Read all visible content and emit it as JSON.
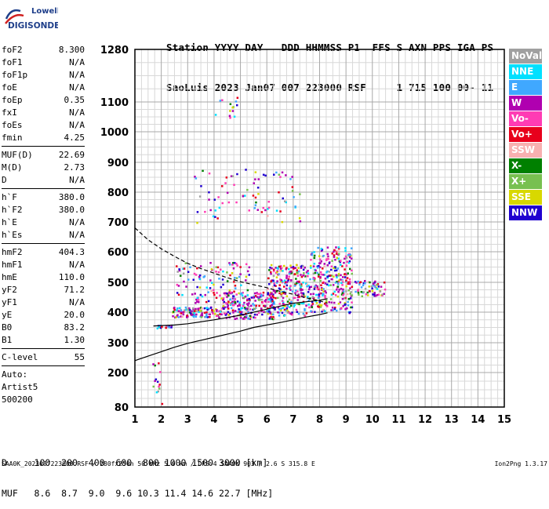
{
  "logo": {
    "line1": "Lowell",
    "line2": "DIGISONDE"
  },
  "header": {
    "line1": "Station YYYY DAY   DDD HHMMSS P1  FFS S AXN PPS IGA PS",
    "line2": "SaoLuis 2023 Jan07 007 223000 RSF     1 715 100 00- 11"
  },
  "params_group1": [
    {
      "name": "foF2",
      "value": "8.300"
    },
    {
      "name": "foF1",
      "value": "N/A"
    },
    {
      "name": "foF1p",
      "value": "N/A"
    },
    {
      "name": "foE",
      "value": "N/A"
    },
    {
      "name": "foEp",
      "value": "0.35"
    },
    {
      "name": "fxI",
      "value": "N/A"
    },
    {
      "name": "foEs",
      "value": "N/A"
    },
    {
      "name": "fmin",
      "value": "4.25"
    }
  ],
  "params_group2": [
    {
      "name": "MUF(D)",
      "value": "22.69"
    },
    {
      "name": "M(D)",
      "value": "2.73"
    },
    {
      "name": "D",
      "value": "N/A"
    }
  ],
  "params_group3": [
    {
      "name": "h`F",
      "value": "380.0"
    },
    {
      "name": "h`F2",
      "value": "380.0"
    },
    {
      "name": "h`E",
      "value": "N/A"
    },
    {
      "name": "h`Es",
      "value": "N/A"
    }
  ],
  "params_group4": [
    {
      "name": "hmF2",
      "value": "404.3"
    },
    {
      "name": "hmF1",
      "value": "N/A"
    },
    {
      "name": "hmE",
      "value": "110.0"
    },
    {
      "name": "yF2",
      "value": "71.2"
    },
    {
      "name": "yF1",
      "value": "N/A"
    },
    {
      "name": "yE",
      "value": "20.0"
    },
    {
      "name": "B0",
      "value": "83.2"
    },
    {
      "name": "B1",
      "value": "1.30"
    }
  ],
  "params_group5": [
    {
      "name": "C-level",
      "value": "55"
    }
  ],
  "autoscaling": {
    "line1": "Auto:",
    "line2": "Artist5",
    "line3": "500200"
  },
  "legend": [
    {
      "label": "NoVal",
      "color": "#a0a0a0"
    },
    {
      "label": "NNE",
      "color": "#00e0ff"
    },
    {
      "label": "E",
      "color": "#40a8ff"
    },
    {
      "label": "W",
      "color": "#b000b0"
    },
    {
      "label": "Vo-",
      "color": "#ff3cb4"
    },
    {
      "label": "Vo+",
      "color": "#e8001c"
    },
    {
      "label": "SSW",
      "color": "#f8b0b0"
    },
    {
      "label": "X-",
      "color": "#008000"
    },
    {
      "label": "X+",
      "color": "#78c050"
    },
    {
      "label": "SSE",
      "color": "#d8d800"
    },
    {
      "label": "NNW",
      "color": "#2000d0"
    }
  ],
  "muf_table": {
    "line1": "D     100  200  400  600  800 1000 1500 3000 [km]",
    "line2": "MUF   8.6  8.7  9.0  9.6 10.3 11.4 14.6 22.7 [MHz]"
  },
  "footer": {
    "left": "SAA0K_2023007223000.RSF / 280fx256h 50 kHz 5.0 km / DPS-4 SAA0K 903 / 2.6 S 315.8 E",
    "right": "Ion2Png 1.3.17"
  },
  "chart_data": {
    "type": "scatter",
    "title": "",
    "xlabel": "",
    "ylabel": "",
    "xlim": [
      1,
      15
    ],
    "ylim": [
      80,
      1280
    ],
    "x_ticks": [
      1,
      2,
      3,
      4,
      5,
      6,
      7,
      8,
      9,
      10,
      11,
      12,
      13,
      14,
      15
    ],
    "y_ticks": [
      80,
      200,
      300,
      400,
      500,
      600,
      700,
      800,
      900,
      1000,
      1100,
      1280
    ],
    "grid": true,
    "series": [
      {
        "name": "profile_dashed",
        "style": "dashed",
        "x": [
          1.0,
          1.5,
          2.0,
          2.5,
          3.0,
          3.5,
          4.0,
          4.5,
          5.0,
          5.5,
          6.0,
          6.5,
          7.0,
          7.5,
          8.0,
          8.3
        ],
        "y": [
          680,
          640,
          610,
          585,
          562,
          545,
          530,
          515,
          502,
          492,
          482,
          470,
          460,
          448,
          438,
          430
        ]
      },
      {
        "name": "profile_solid",
        "style": "solid",
        "x": [
          1.0,
          1.5,
          2.0,
          2.5,
          3.0,
          3.5,
          4.0,
          4.5,
          5.0,
          5.5,
          6.0,
          6.5,
          7.0,
          7.5,
          8.0,
          8.3
        ],
        "y": [
          240,
          255,
          270,
          285,
          298,
          308,
          318,
          328,
          338,
          350,
          358,
          366,
          375,
          384,
          392,
          398
        ]
      },
      {
        "name": "profile_trace",
        "style": "solid",
        "x": [
          1.7,
          2.5,
          3.0,
          4.0,
          5.0,
          6.0,
          7.0,
          8.0,
          8.3
        ],
        "y": [
          355,
          358,
          362,
          375,
          390,
          410,
          430,
          440,
          445
        ]
      }
    ],
    "echo_clusters": [
      {
        "x": [
          1.8,
          2.4
        ],
        "y": [
          350,
          360
        ],
        "n": 20
      },
      {
        "x": [
          2.4,
          4.3
        ],
        "y": [
          385,
          420
        ],
        "n": 120
      },
      {
        "x": [
          4.3,
          6.3
        ],
        "y": [
          380,
          470
        ],
        "n": 220
      },
      {
        "x": [
          6.0,
          7.6
        ],
        "y": [
          390,
          560
        ],
        "n": 260
      },
      {
        "x": [
          7.6,
          9.2
        ],
        "y": [
          400,
          620
        ],
        "n": 300
      },
      {
        "x": [
          9.3,
          10.5
        ],
        "y": [
          455,
          510
        ],
        "n": 60
      },
      {
        "x": [
          2.5,
          5.3
        ],
        "y": [
          430,
          570
        ],
        "n": 120
      },
      {
        "x": [
          3.2,
          7.3
        ],
        "y": [
          700,
          880
        ],
        "n": 80
      },
      {
        "x": [
          4.0,
          4.9
        ],
        "y": [
          1050,
          1130
        ],
        "n": 14
      },
      {
        "x": [
          1.6,
          2.0
        ],
        "y": [
          85,
          250
        ],
        "n": 14
      }
    ]
  }
}
